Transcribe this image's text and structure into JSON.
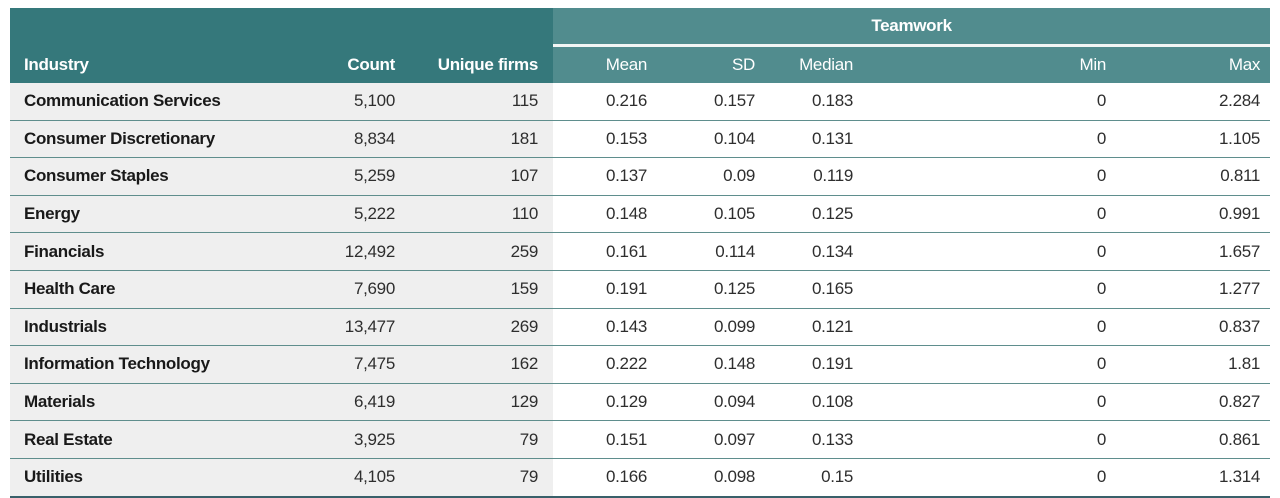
{
  "table": {
    "group_header": {
      "label": "Teamwork"
    },
    "columns": {
      "industry": "Industry",
      "count": "Count",
      "unique_firms": "Unique firms",
      "mean": "Mean",
      "sd": "SD",
      "median": "Median",
      "min": "Min",
      "max": "Max"
    },
    "rows": [
      [
        "Communication Services",
        "5,100",
        "115",
        "0.216",
        "0.157",
        "0.183",
        "0",
        "2.284"
      ],
      [
        "Consumer Discretionary",
        "8,834",
        "181",
        "0.153",
        "0.104",
        "0.131",
        "0",
        "1.105"
      ],
      [
        "Consumer Staples",
        "5,259",
        "107",
        "0.137",
        "0.09",
        "0.119",
        "0",
        "0.811"
      ],
      [
        "Energy",
        "5,222",
        "110",
        "0.148",
        "0.105",
        "0.125",
        "0",
        "0.991"
      ],
      [
        "Financials",
        "12,492",
        "259",
        "0.161",
        "0.114",
        "0.134",
        "0",
        "1.657"
      ],
      [
        "Health Care",
        "7,690",
        "159",
        "0.191",
        "0.125",
        "0.165",
        "0",
        "1.277"
      ],
      [
        "Industrials",
        "13,477",
        "269",
        "0.143",
        "0.099",
        "0.121",
        "0",
        "0.837"
      ],
      [
        "Information Technology",
        "7,475",
        "162",
        "0.222",
        "0.148",
        "0.191",
        "0",
        "1.81"
      ],
      [
        "Materials",
        "6,419",
        "129",
        "0.129",
        "0.094",
        "0.108",
        "0",
        "0.827"
      ],
      [
        "Real Estate",
        "3,925",
        "79",
        "0.151",
        "0.097",
        "0.133",
        "0",
        "0.861"
      ],
      [
        "Utilities",
        "4,105",
        "79",
        "0.166",
        "0.098",
        "0.15",
        "0",
        "1.314"
      ]
    ]
  },
  "colors": {
    "header_dark_teal": "#35787b",
    "header_light_teal": "#518c8e",
    "row_left_background": "#efefef",
    "row_right_background": "#ffffff",
    "row_divider": "#5f8e8d",
    "bottom_border": "#39606a",
    "header_text": "#ffffff",
    "body_text": "#2e2e2e"
  }
}
